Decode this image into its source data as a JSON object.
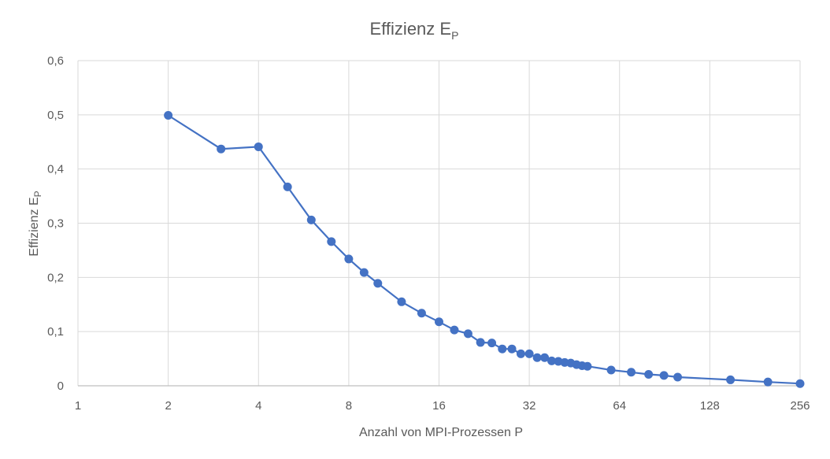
{
  "chart_data": {
    "type": "scatter",
    "title": "Effizienz E",
    "title_sub": "P",
    "xlabel": "Anzahl von MPI-Prozessen P",
    "ylabel": "Effizienz E",
    "ylabel_sub": "P",
    "x_scale": "log2",
    "xlim": [
      1,
      256
    ],
    "ylim": [
      0,
      0.6
    ],
    "x_ticks": [
      1,
      2,
      4,
      8,
      16,
      32,
      64,
      128,
      256
    ],
    "x_tick_labels": [
      "1",
      "2",
      "4",
      "8",
      "16",
      "32",
      "64",
      "128",
      "256"
    ],
    "y_ticks": [
      0,
      0.1,
      0.2,
      0.3,
      0.4,
      0.5,
      0.6
    ],
    "y_tick_labels": [
      "0",
      "0,1",
      "0,2",
      "0,3",
      "0,4",
      "0,5",
      "0,6"
    ],
    "grid": true,
    "line_color": "#4472C4",
    "series": [
      {
        "x": [
          2,
          3,
          4,
          5,
          6,
          7,
          8,
          9,
          10,
          12,
          14,
          16,
          18,
          20,
          22,
          24,
          26,
          28,
          30,
          32,
          34,
          36,
          38,
          40,
          42,
          44,
          46,
          48,
          50,
          60,
          70,
          80,
          90,
          100,
          150,
          200,
          256
        ],
        "y": [
          0.499,
          0.437,
          0.441,
          0.367,
          0.306,
          0.266,
          0.234,
          0.209,
          0.189,
          0.155,
          0.134,
          0.118,
          0.103,
          0.096,
          0.08,
          0.079,
          0.068,
          0.068,
          0.059,
          0.059,
          0.052,
          0.052,
          0.046,
          0.045,
          0.043,
          0.042,
          0.039,
          0.037,
          0.036,
          0.029,
          0.025,
          0.021,
          0.019,
          0.016,
          0.011,
          0.007,
          0.004
        ]
      }
    ]
  }
}
